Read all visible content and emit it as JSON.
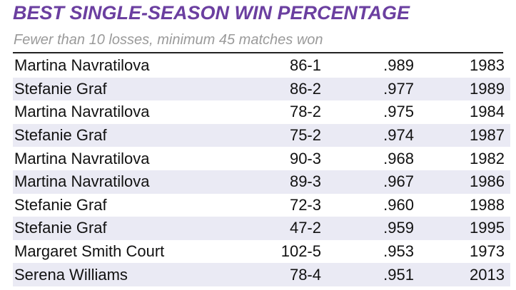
{
  "title": "BEST SINGLE-SEASON WIN PERCENTAGE",
  "subtitle": "Fewer than 10 losses, minimum 45 matches won",
  "rows": [
    {
      "name": "Martina Navratilova",
      "record": "86-1",
      "pct": ".989",
      "year": "1983"
    },
    {
      "name": "Stefanie Graf",
      "record": "86-2",
      "pct": ".977",
      "year": "1989"
    },
    {
      "name": "Martina Navratilova",
      "record": "78-2",
      "pct": ".975",
      "year": "1984"
    },
    {
      "name": "Stefanie Graf",
      "record": "75-2",
      "pct": ".974",
      "year": "1987"
    },
    {
      "name": "Martina Navratilova",
      "record": "90-3",
      "pct": ".968",
      "year": "1982"
    },
    {
      "name": "Martina Navratilova",
      "record": "89-3",
      "pct": ".967",
      "year": "1986"
    },
    {
      "name": "Stefanie Graf",
      "record": "72-3",
      "pct": ".960",
      "year": "1988"
    },
    {
      "name": "Stefanie Graf",
      "record": "47-2",
      "pct": ".959",
      "year": "1995"
    },
    {
      "name": "Margaret Smith Court",
      "record": "102-5",
      "pct": ".953",
      "year": "1973"
    },
    {
      "name": "Serena Williams",
      "record": "78-4",
      "pct": ".951",
      "year": "2013"
    }
  ],
  "colors": {
    "title": "#6b3fa0",
    "subtitle": "#9a9a9a",
    "row_alt": "#eaeaf4",
    "rule": "#222222"
  }
}
